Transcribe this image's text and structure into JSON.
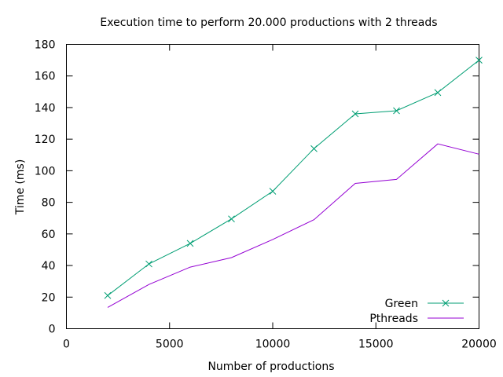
{
  "chart_data": {
    "type": "line",
    "title": "Execution time to perform 20.000 productions with 2 threads",
    "xlabel": "Number of productions",
    "ylabel": "Time (ms)",
    "xlim": [
      0,
      20000
    ],
    "ylim": [
      0,
      180
    ],
    "xticks": [
      0,
      5000,
      10000,
      15000,
      20000
    ],
    "yticks": [
      0,
      20,
      40,
      60,
      80,
      100,
      120,
      140,
      160,
      180
    ],
    "x": [
      2000,
      4000,
      6000,
      8000,
      10000,
      12000,
      14000,
      16000,
      18000,
      20000
    ],
    "series": [
      {
        "name": "Green",
        "color": "#009e73",
        "marker": "x",
        "values": [
          21,
          41,
          54,
          69.5,
          87,
          114,
          136,
          138,
          149.5,
          170
        ]
      },
      {
        "name": "Pthreads",
        "color": "#9400d3",
        "marker": "none",
        "values": [
          13.5,
          28,
          39,
          45,
          56.5,
          69,
          92,
          94.5,
          117,
          110.5
        ]
      }
    ],
    "grid": false,
    "legend_position": "bottom-right"
  }
}
